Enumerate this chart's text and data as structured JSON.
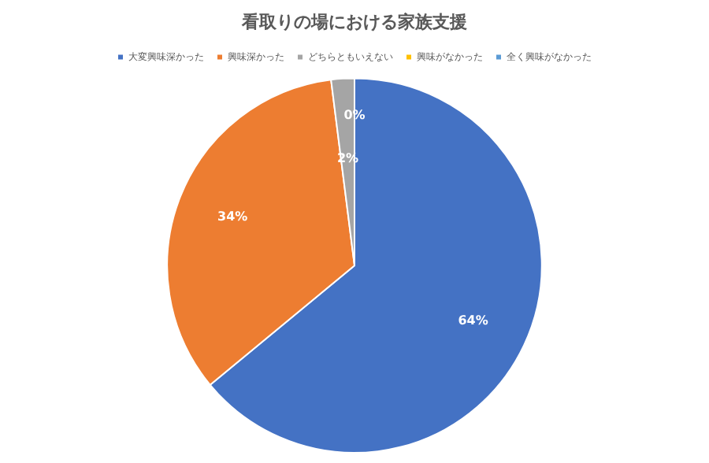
{
  "chart_data": {
    "type": "pie",
    "title": "看取りの場における家族支援",
    "categories": [
      "大変興味深かった",
      "興味深かった",
      "どちらともいえない",
      "興味がなかった",
      "全く興味がなかった"
    ],
    "values": [
      64,
      34,
      2,
      0,
      0
    ],
    "colors": [
      "#4472c4",
      "#ed7d31",
      "#a5a5a5",
      "#ffc000",
      "#5b9bd5"
    ],
    "value_labels": [
      "64%",
      "34%",
      "2%",
      "0%",
      null
    ],
    "legend": "top"
  }
}
